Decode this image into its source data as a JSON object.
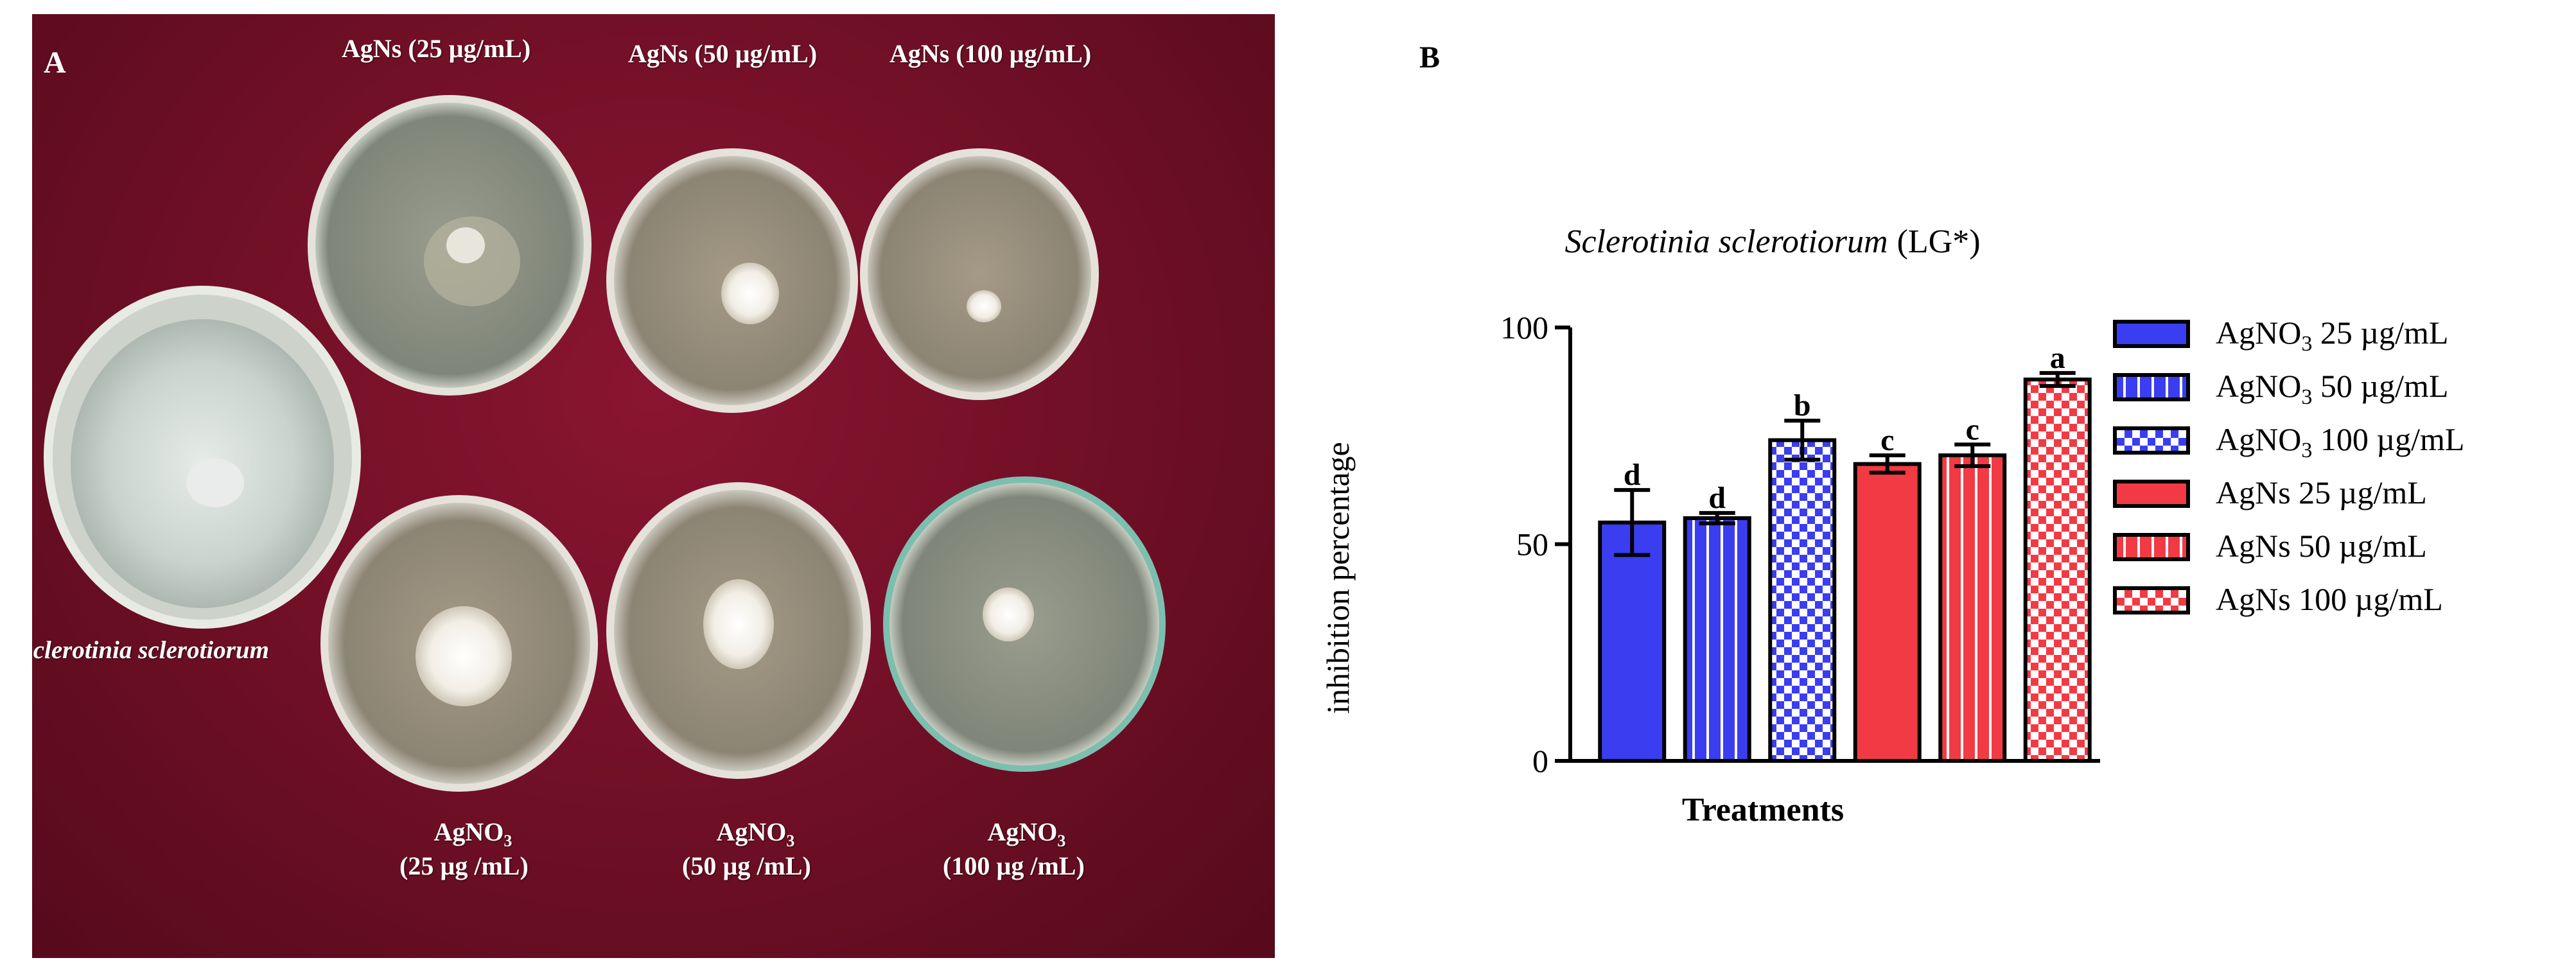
{
  "panel_a": {
    "letter": "A",
    "labels": {
      "control": "Sclerotinia sclerotiorum",
      "agns_25": "AgNs (25 µg/mL)",
      "agns_50": "AgNs (50 µg/mL)",
      "agns_100": "AgNs (100 µg/mL)",
      "agno3_25_line1": "AgNO",
      "agno3_25_line2": "(25 µg /mL)",
      "agno3_50_line1": "AgNO",
      "agno3_50_line2": "(50 µg /mL)",
      "agno3_100_line1": "AgNO",
      "agno3_100_line2": "(100 µg /mL)",
      "subscript": "3"
    },
    "colors": {
      "background": "#6e0f25"
    }
  },
  "panel_b": {
    "letter": "B"
  },
  "chart_data": {
    "type": "bar",
    "title": "Sclerotinia sclerotiorum",
    "title_suffix": "(LG*)",
    "xlabel": "Treatments",
    "ylabel": "inhibition percentage",
    "ylim": [
      0,
      100
    ],
    "yticks": [
      0,
      50,
      100
    ],
    "grid": false,
    "legend_position": "right",
    "categories": [
      "AgNO3 25 µg/mL",
      "AgNO3 50 µg/mL",
      "AgNO3 100 µg/mL",
      "AgNs 25 µg/mL",
      "AgNs 50 µg/mL",
      "AgNs 100 µg/mL"
    ],
    "values": [
      55,
      56,
      74,
      68.5,
      70.5,
      88
    ],
    "errors": [
      7.5,
      1.2,
      4.5,
      2,
      2.5,
      1.5
    ],
    "significance_letters": [
      "d",
      "d",
      "b",
      "c",
      "c",
      "a"
    ],
    "legend": [
      {
        "prefix": "AgNO",
        "sub": "3",
        "suffix": " 25 µg/mL",
        "color": "#3a3df0",
        "pattern": "solid"
      },
      {
        "prefix": "AgNO",
        "sub": "3",
        "suffix": " 50 µg/mL",
        "color": "#3a3df0",
        "pattern": "stripes"
      },
      {
        "prefix": "AgNO",
        "sub": "3",
        "suffix": " 100 µg/mL",
        "color": "#3a3df0",
        "pattern": "checker"
      },
      {
        "prefix": "AgNs 25 µg/mL",
        "sub": "",
        "suffix": "",
        "color": "#f23a44",
        "pattern": "solid"
      },
      {
        "prefix": "AgNs 50 µg/mL",
        "sub": "",
        "suffix": "",
        "color": "#f23a44",
        "pattern": "stripes"
      },
      {
        "prefix": "AgNs 100 µg/mL",
        "sub": "",
        "suffix": "",
        "color": "#f23a44",
        "pattern": "checker"
      }
    ]
  }
}
